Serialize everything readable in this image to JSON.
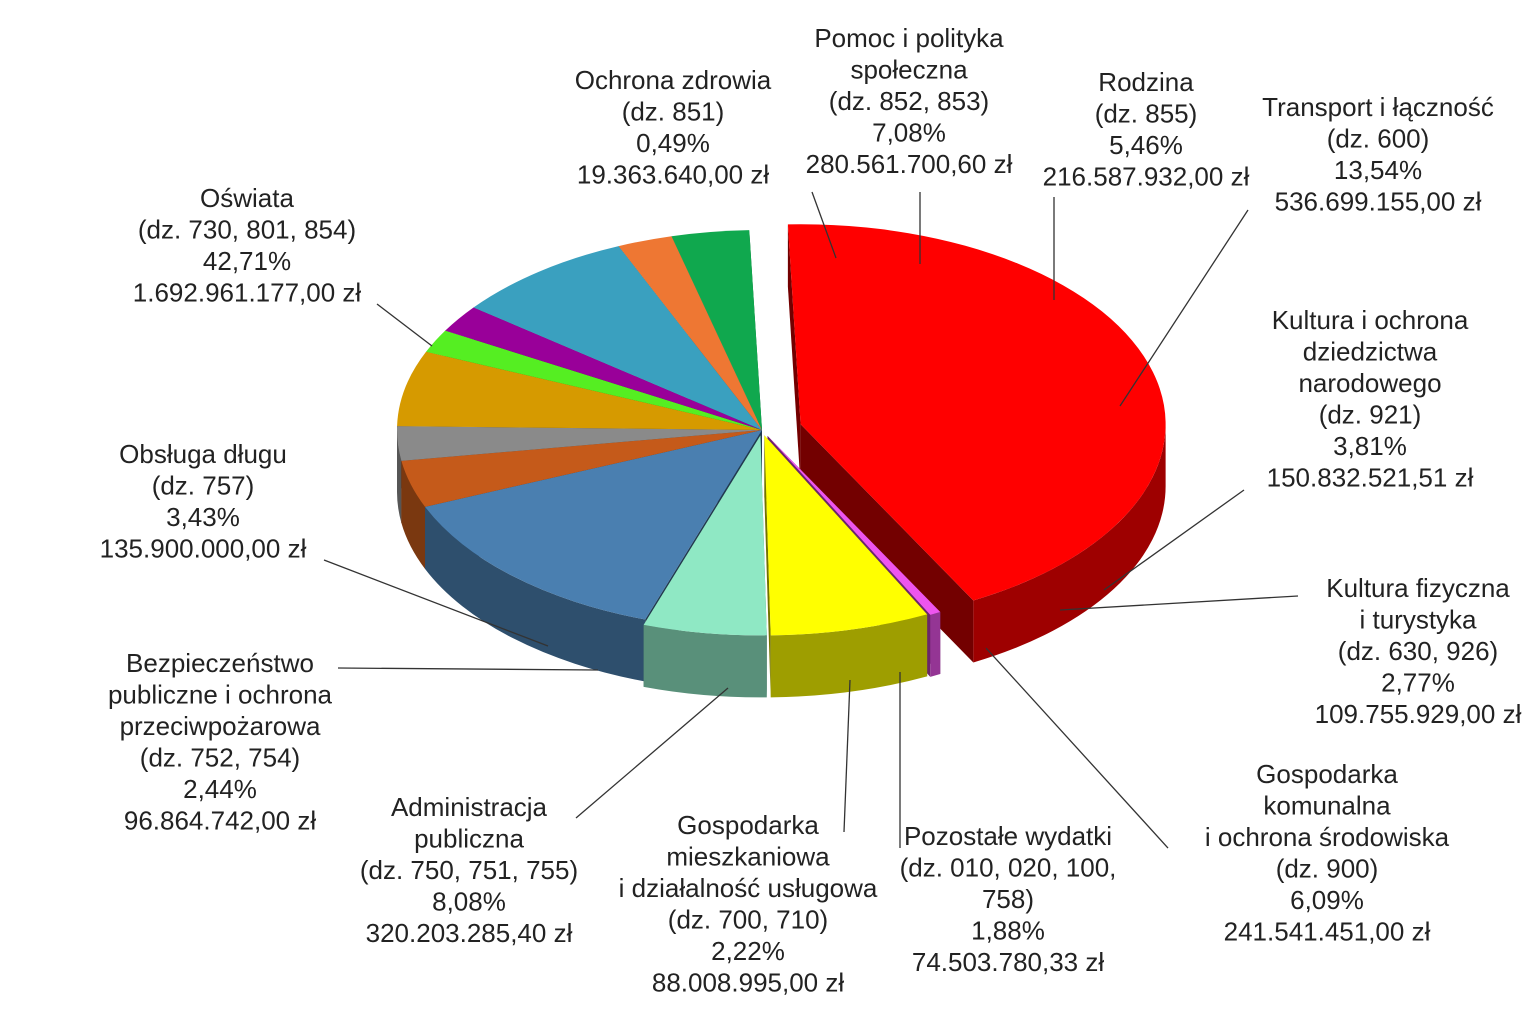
{
  "chart_data": {
    "type": "pie",
    "title": "",
    "series": [
      {
        "name": "Oświata",
        "code": "(dz. 730, 801, 854)",
        "percent": "42,71%",
        "value": 42.71,
        "amount": "1.692.961.177,00 zł",
        "color": "#ff0000",
        "exploded": true
      },
      {
        "name": "Ochrona zdrowia",
        "code": "(dz. 851)",
        "percent": "0,49%",
        "value": 0.49,
        "amount": "19.363.640,00 zł",
        "color": "#ee55ee",
        "exploded": true
      },
      {
        "name": "Pomoc i polityka społeczna",
        "code": "(dz. 852, 853)",
        "percent": "7,08%",
        "value": 7.08,
        "amount": "280.561.700,60 zł",
        "color": "#ffff00",
        "exploded": true
      },
      {
        "name": "Rodzina",
        "code": "(dz. 855)",
        "percent": "5,46%",
        "value": 5.46,
        "amount": "216.587.932,00 zł",
        "color": "#8fe8c4",
        "exploded": true
      },
      {
        "name": "Transport i łączność",
        "code": "(dz. 600)",
        "percent": "13,54%",
        "value": 13.54,
        "amount": "536.699.155,00 zł",
        "color": "#4a7fb0",
        "exploded": false
      },
      {
        "name": "Kultura i ochrona dziedzictwa narodowego",
        "code": "(dz. 921)",
        "percent": "3,81%",
        "value": 3.81,
        "amount": "150.832.521,51 zł",
        "color": "#c55a1a",
        "exploded": false
      },
      {
        "name": "Kultura fizyczna i turystyka",
        "code": "(dz. 630, 926)",
        "percent": "2,77%",
        "value": 2.77,
        "amount": "109.755.929,00 zł",
        "color": "#8a8a8a",
        "exploded": false
      },
      {
        "name": "Gospodarka komunalna i ochrona środowiska",
        "code": "(dz. 900)",
        "percent": "6,09%",
        "value": 6.09,
        "amount": "241.541.451,00 zł",
        "color": "#d69a00",
        "exploded": false
      },
      {
        "name": "Pozostałe wydatki",
        "code": "(dz. 010, 020, 100, 758)",
        "percent": "1,88%",
        "value": 1.88,
        "amount": "74.503.780,33 zł",
        "color": "#55ee22",
        "exploded": false
      },
      {
        "name": "Gospodarka mieszkaniowa i działalność usługowa",
        "code": "(dz. 700, 710)",
        "percent": "2,22%",
        "value": 2.22,
        "amount": "88.008.995,00 zł",
        "color": "#990099",
        "exploded": false
      },
      {
        "name": "Administracja publiczna",
        "code": "(dz. 750, 751, 755)",
        "percent": "8,08%",
        "value": 8.08,
        "amount": "320.203.285,40 zł",
        "color": "#3aa0bf",
        "exploded": false
      },
      {
        "name": "Bezpieczeństwo publiczne i ochrona przeciwpożarowa",
        "code": "(dz. 752, 754)",
        "percent": "2,44%",
        "value": 2.44,
        "amount": "96.864.742,00 zł",
        "color": "#ee7733",
        "exploded": false
      },
      {
        "name": "Obsługa długu",
        "code": "(dz. 757)",
        "percent": "3,43%",
        "value": 3.43,
        "amount": "135.900.000,00 zł",
        "color": "#10a84e",
        "exploded": false
      }
    ],
    "labels": [
      {
        "lines": [
          "Oświata",
          "(dz. 730, 801, 854)",
          "42,71%",
          "1.692.961.177,00 zł"
        ]
      },
      {
        "lines": [
          "Ochrona zdrowia",
          "(dz. 851)",
          "0,49%",
          "19.363.640,00 zł"
        ]
      },
      {
        "lines": [
          "Pomoc i polityka",
          "społeczna",
          "(dz. 852, 853)",
          "7,08%",
          "280.561.700,60 zł"
        ]
      },
      {
        "lines": [
          "Rodzina",
          "(dz. 855)",
          "5,46%",
          "216.587.932,00 zł"
        ]
      },
      {
        "lines": [
          "Transport i łączność",
          "(dz. 600)",
          "13,54%",
          "536.699.155,00 zł"
        ]
      },
      {
        "lines": [
          "Kultura  i ochrona",
          "dziedzictwa",
          "narodowego",
          "(dz. 921)",
          "3,81%",
          "150.832.521,51 zł"
        ]
      },
      {
        "lines": [
          "Kultura  fizyczna",
          "i turystyka",
          "(dz. 630, 926)",
          "2,77%",
          "109.755.929,00 zł"
        ]
      },
      {
        "lines": [
          "Gospodarka",
          "komunalna",
          "i ochrona środowiska",
          "(dz. 900)",
          "6,09%",
          "241.541.451,00 zł"
        ]
      },
      {
        "lines": [
          "Pozostałe wydatki",
          "(dz. 010, 020, 100,",
          "758)",
          "1,88%",
          "74.503.780,33 zł"
        ]
      },
      {
        "lines": [
          "Gospodarka",
          "mieszkaniowa",
          "i działalność usługowa",
          "(dz. 700, 710)",
          "2,22%",
          "88.008.995,00 zł"
        ]
      },
      {
        "lines": [
          "Administracja",
          "publiczna",
          "(dz. 750, 751, 755)",
          "8,08%",
          "320.203.285,40 zł"
        ]
      },
      {
        "lines": [
          "Bezpieczeństwo",
          "publiczne i ochrona",
          "przeciwpożarowa",
          "(dz. 752, 754)",
          "2,44%",
          "96.864.742,00 zł"
        ]
      },
      {
        "lines": [
          "Obsługa długu",
          "(dz. 757)",
          "3,43%",
          "135.900.000,00 zł"
        ]
      }
    ]
  }
}
